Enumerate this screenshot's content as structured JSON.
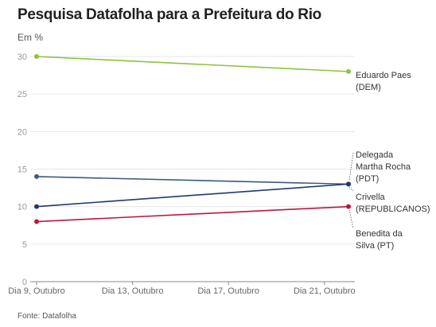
{
  "chart_data": {
    "type": "line",
    "title": "Pesquisa Datafolha para a Prefeitura do Rio",
    "ylabel": "Em %",
    "source": "Fonte: Datafolha",
    "ylim": [
      0,
      30
    ],
    "yticks": [
      0,
      5,
      10,
      15,
      20,
      25,
      30
    ],
    "x": [
      "Dia 9, Outubro",
      "Dia 22, Outubro"
    ],
    "xticks": [
      "Dia 9, Outubro",
      "Dia 13, Outubro",
      "Dia 17, Outubro",
      "Dia 21, Outubro"
    ],
    "grid": true,
    "series": [
      {
        "name": "Eduardo Paes (DEM)",
        "label_lines": [
          "Eduardo Paes",
          "(DEM)"
        ],
        "color": "#8cc43c",
        "values": [
          30,
          28
        ]
      },
      {
        "name": "Delegada Martha Rocha (PDT)",
        "label_lines": [
          "Delegada",
          "Martha Rocha",
          "(PDT)"
        ],
        "color": "#3d5a80",
        "values": [
          14,
          13
        ]
      },
      {
        "name": "Crivella (REPUBLICANOS)",
        "label_lines": [
          "Crivella",
          "(REPUBLICANOS)"
        ],
        "color": "#1f3a6e",
        "values": [
          10,
          13
        ]
      },
      {
        "name": "Benedita da Silva (PT)",
        "label_lines": [
          "Benedita da",
          "Silva (PT)"
        ],
        "color": "#c0163c",
        "values": [
          8,
          10
        ]
      }
    ]
  }
}
